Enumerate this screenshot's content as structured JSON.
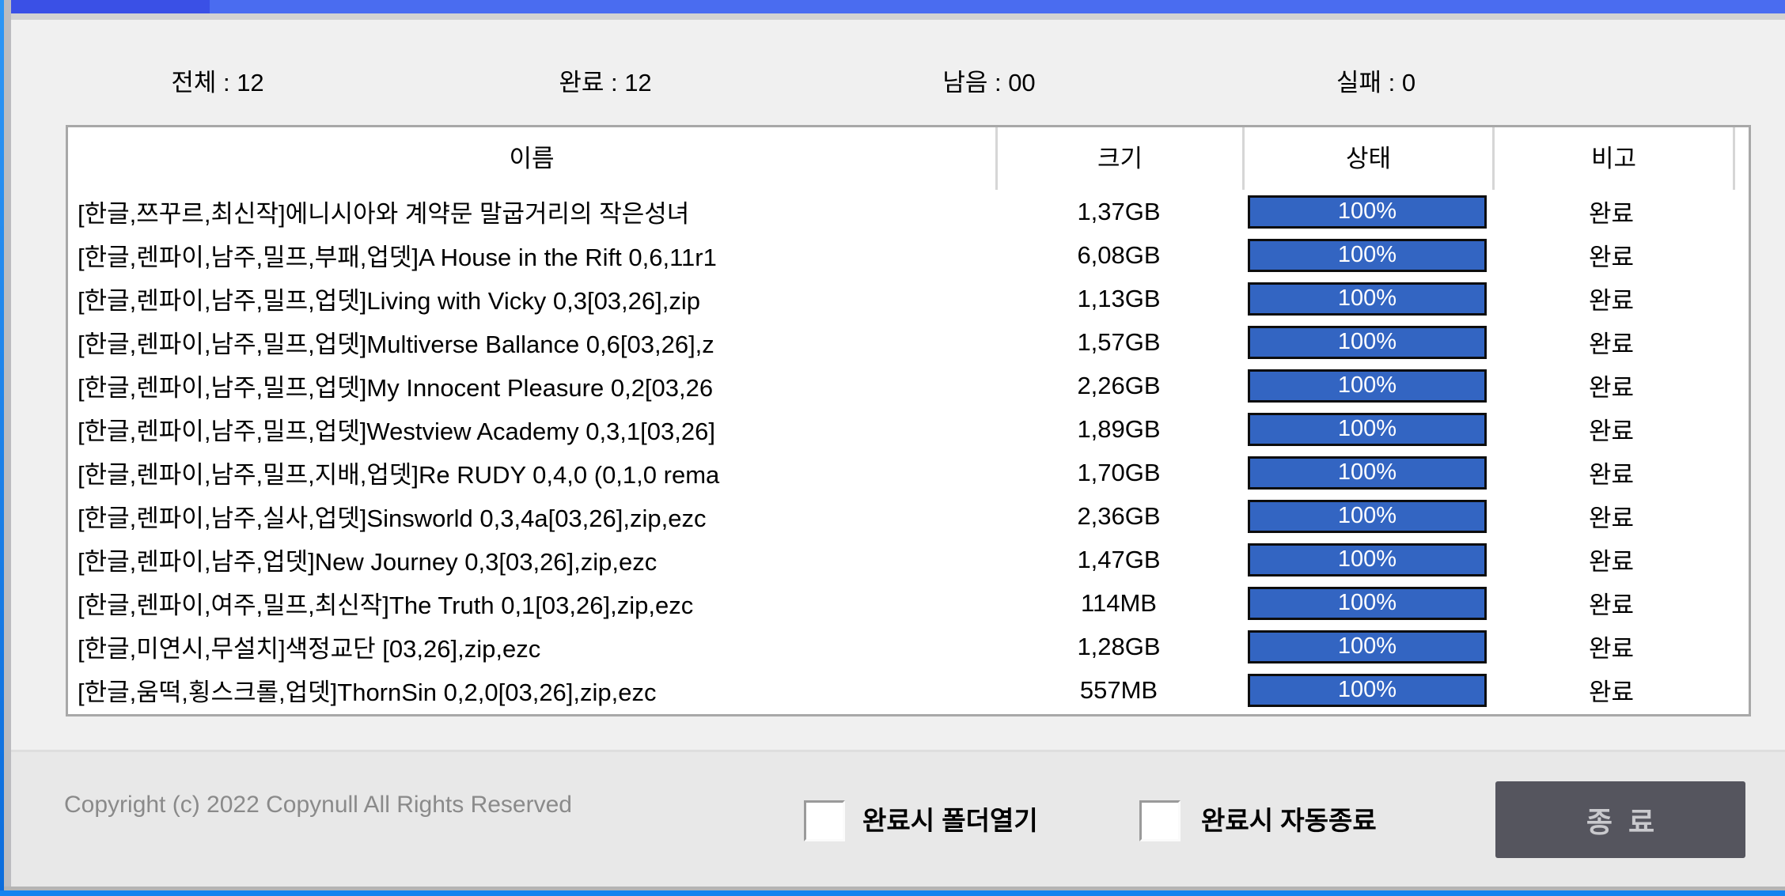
{
  "window": {
    "colors": {
      "titlebar_dark": "#3a50e6",
      "titlebar_light": "#4a6cf0",
      "frame_blue": "#1583ef",
      "main_background": "#f0f0f0",
      "footer_background": "#e8e8e8",
      "progress_fill": "#3365c2"
    }
  },
  "stats": {
    "total": "전체 : 12",
    "done": "완료 : 12",
    "remaining": "남음 : 00",
    "failed": "실패 : 0"
  },
  "table": {
    "columns": [
      "이름",
      "크기",
      "상태",
      "비고"
    ],
    "rows": [
      {
        "name": "[한글,쯔꾸르,최신작]에니시아와 계약문 말굽거리의 작은성녀",
        "size": "1,37GB",
        "progress": "100%",
        "note": "완료"
      },
      {
        "name": "[한글,렌파이,남주,밀프,부패,업뎃]A House in the Rift 0,6,11r1",
        "size": "6,08GB",
        "progress": "100%",
        "note": "완료"
      },
      {
        "name": "[한글,렌파이,남주,밀프,업뎃]Living with Vicky 0,3[03,26],zip",
        "size": "1,13GB",
        "progress": "100%",
        "note": "완료"
      },
      {
        "name": "[한글,렌파이,남주,밀프,업뎃]Multiverse Ballance 0,6[03,26],z",
        "size": "1,57GB",
        "progress": "100%",
        "note": "완료"
      },
      {
        "name": "[한글,렌파이,남주,밀프,업뎃]My Innocent Pleasure 0,2[03,26",
        "size": "2,26GB",
        "progress": "100%",
        "note": "완료"
      },
      {
        "name": "[한글,렌파이,남주,밀프,업뎃]Westview Academy 0,3,1[03,26]",
        "size": "1,89GB",
        "progress": "100%",
        "note": "완료"
      },
      {
        "name": "[한글,렌파이,남주,밀프,지배,업뎃]Re RUDY 0,4,0 (0,1,0 rema",
        "size": "1,70GB",
        "progress": "100%",
        "note": "완료"
      },
      {
        "name": "[한글,렌파이,남주,실사,업뎃]Sinsworld 0,3,4a[03,26],zip,ezc",
        "size": "2,36GB",
        "progress": "100%",
        "note": "완료"
      },
      {
        "name": "[한글,렌파이,남주,업뎃]New Journey 0,3[03,26],zip,ezc",
        "size": "1,47GB",
        "progress": "100%",
        "note": "완료"
      },
      {
        "name": "[한글,렌파이,여주,밀프,최신작]The Truth 0,1[03,26],zip,ezc",
        "size": "114MB",
        "progress": "100%",
        "note": "완료"
      },
      {
        "name": "[한글,미연시,무설치]색정교단 [03,26],zip,ezc",
        "size": "1,28GB",
        "progress": "100%",
        "note": "완료"
      },
      {
        "name": "[한글,움떡,횡스크롤,업뎃]ThornSin 0,2,0[03,26],zip,ezc",
        "size": "557MB",
        "progress": "100%",
        "note": "완료"
      }
    ]
  },
  "footer": {
    "copyright": "Copyright (c) 2022 Copynull All Rights Reserved",
    "open_folder_checkbox": {
      "label": "완료시 폴더열기",
      "checked": false
    },
    "auto_exit_checkbox": {
      "label": "완료시 자동종료",
      "checked": false
    },
    "exit_button_label": "종료"
  }
}
